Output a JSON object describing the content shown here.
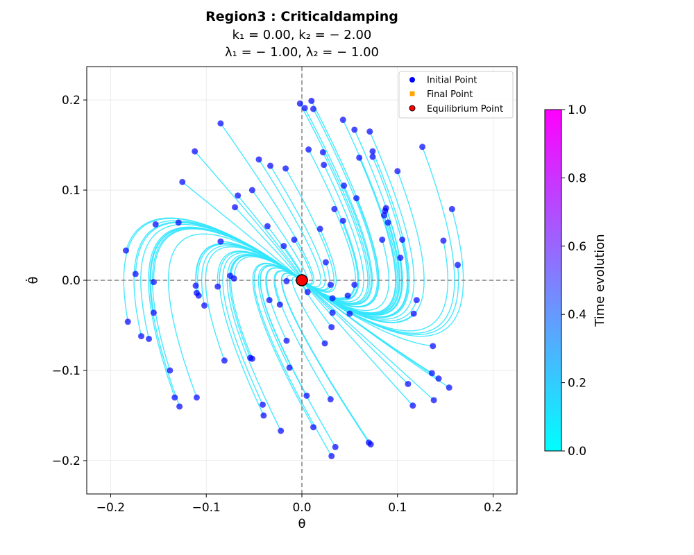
{
  "chart_data": {
    "type": "scatter",
    "title_line1": "Region3 : Criticaldamping",
    "title_line2": "k₁ = 0.00, k₂ = − 2.00",
    "title_line3": "λ₁ = − 1.00, λ₂ = − 1.00",
    "xlabel": "θ",
    "ylabel": "θ̇",
    "xlim": [
      -0.225,
      0.225
    ],
    "ylim": [
      -0.237,
      0.237
    ],
    "xticks": [
      -0.2,
      -0.1,
      0.0,
      0.1,
      0.2
    ],
    "yticks": [
      -0.2,
      -0.1,
      0.0,
      0.1,
      0.2
    ],
    "xtick_labels": [
      "−0.2",
      "−0.1",
      "0.0",
      "0.1",
      "0.2"
    ],
    "ytick_labels": [
      "−0.2",
      "−0.1",
      "0.0",
      "0.1",
      "0.2"
    ],
    "grid": true,
    "legend_position": "top-right",
    "legend": [
      {
        "label": "Initial Point",
        "marker": "circle",
        "color": "#0000ff"
      },
      {
        "label": "Final Point",
        "marker": "square",
        "color": "#ffa500"
      },
      {
        "label": "Equilibrium Point",
        "marker": "circle",
        "color": "#ff0000",
        "edge": "#000000"
      }
    ],
    "colorbar": {
      "label": "Time evolution",
      "range": [
        0,
        1
      ],
      "ticks": [
        "0.0",
        "0.2",
        "0.4",
        "0.6",
        "0.8",
        "1.0"
      ],
      "colormap": "cool",
      "color_start": "#00ffff",
      "color_end": "#ff00ff"
    },
    "equilibrium_point": [
      0.0,
      0.0
    ],
    "system": {
      "k1": 0.0,
      "k2": -2.0,
      "lambda1": -1.0,
      "lambda2": -1.0
    },
    "trajectory_color": "#33e6ff",
    "marker_color": "#0000ff",
    "initial_points": [
      [
        -0.002,
        0.196
      ],
      [
        0.003,
        0.191
      ],
      [
        0.01,
        0.199
      ],
      [
        0.012,
        0.19
      ],
      [
        -0.085,
        0.174
      ],
      [
        -0.112,
        0.143
      ],
      [
        -0.045,
        0.134
      ],
      [
        -0.033,
        0.127
      ],
      [
        -0.017,
        0.124
      ],
      [
        0.007,
        0.145
      ],
      [
        0.022,
        0.142
      ],
      [
        0.023,
        0.128
      ],
      [
        -0.125,
        0.109
      ],
      [
        -0.052,
        0.1
      ],
      [
        -0.067,
        0.094
      ],
      [
        0.043,
        0.178
      ],
      [
        0.055,
        0.167
      ],
      [
        0.071,
        0.165
      ],
      [
        0.074,
        0.143
      ],
      [
        0.074,
        0.137
      ],
      [
        0.06,
        0.136
      ],
      [
        0.126,
        0.148
      ],
      [
        0.1,
        0.121
      ],
      [
        0.044,
        0.105
      ],
      [
        0.057,
        0.091
      ],
      [
        -0.07,
        0.081
      ],
      [
        0.034,
        0.079
      ],
      [
        0.088,
        0.08
      ],
      [
        0.087,
        0.077
      ],
      [
        0.086,
        0.072
      ],
      [
        0.157,
        0.079
      ],
      [
        -0.129,
        0.064
      ],
      [
        -0.153,
        0.062
      ],
      [
        0.043,
        0.066
      ],
      [
        0.09,
        0.064
      ],
      [
        -0.036,
        0.06
      ],
      [
        0.019,
        0.057
      ],
      [
        -0.085,
        0.043
      ],
      [
        -0.008,
        0.045
      ],
      [
        0.084,
        0.045
      ],
      [
        0.105,
        0.045
      ],
      [
        0.148,
        0.044
      ],
      [
        -0.019,
        0.038
      ],
      [
        -0.184,
        0.033
      ],
      [
        0.103,
        0.025
      ],
      [
        0.025,
        0.02
      ],
      [
        0.163,
        0.017
      ],
      [
        -0.174,
        0.007
      ],
      [
        -0.075,
        0.005
      ],
      [
        -0.071,
        0.002
      ],
      [
        -0.155,
        -0.002
      ],
      [
        -0.016,
        -0.001
      ],
      [
        -0.111,
        -0.006
      ],
      [
        -0.088,
        -0.007
      ],
      [
        0.03,
        -0.005
      ],
      [
        0.055,
        -0.005
      ],
      [
        0.006,
        -0.013
      ],
      [
        -0.11,
        -0.014
      ],
      [
        -0.108,
        -0.017
      ],
      [
        0.048,
        -0.017
      ],
      [
        0.032,
        -0.02
      ],
      [
        -0.034,
        -0.022
      ],
      [
        0.12,
        -0.022
      ],
      [
        -0.023,
        -0.027
      ],
      [
        -0.102,
        -0.028
      ],
      [
        0.032,
        -0.036
      ],
      [
        0.05,
        -0.037
      ],
      [
        0.117,
        -0.037
      ],
      [
        -0.155,
        -0.036
      ],
      [
        -0.182,
        -0.046
      ],
      [
        0.031,
        -0.052
      ],
      [
        -0.168,
        -0.062
      ],
      [
        -0.16,
        -0.065
      ],
      [
        -0.016,
        -0.067
      ],
      [
        0.024,
        -0.07
      ],
      [
        0.137,
        -0.073
      ],
      [
        -0.054,
        -0.086
      ],
      [
        -0.052,
        -0.087
      ],
      [
        -0.081,
        -0.089
      ],
      [
        -0.013,
        -0.097
      ],
      [
        -0.138,
        -0.1
      ],
      [
        0.136,
        -0.103
      ],
      [
        0.143,
        -0.109
      ],
      [
        0.111,
        -0.115
      ],
      [
        0.154,
        -0.119
      ],
      [
        0.005,
        -0.128
      ],
      [
        0.03,
        -0.132
      ],
      [
        -0.133,
        -0.13
      ],
      [
        -0.11,
        -0.13
      ],
      [
        0.138,
        -0.133
      ],
      [
        -0.041,
        -0.138
      ],
      [
        -0.128,
        -0.14
      ],
      [
        0.116,
        -0.139
      ],
      [
        -0.04,
        -0.15
      ],
      [
        0.012,
        -0.163
      ],
      [
        -0.022,
        -0.167
      ],
      [
        0.07,
        -0.18
      ],
      [
        0.072,
        -0.182
      ],
      [
        0.035,
        -0.185
      ],
      [
        0.031,
        -0.195
      ]
    ]
  }
}
